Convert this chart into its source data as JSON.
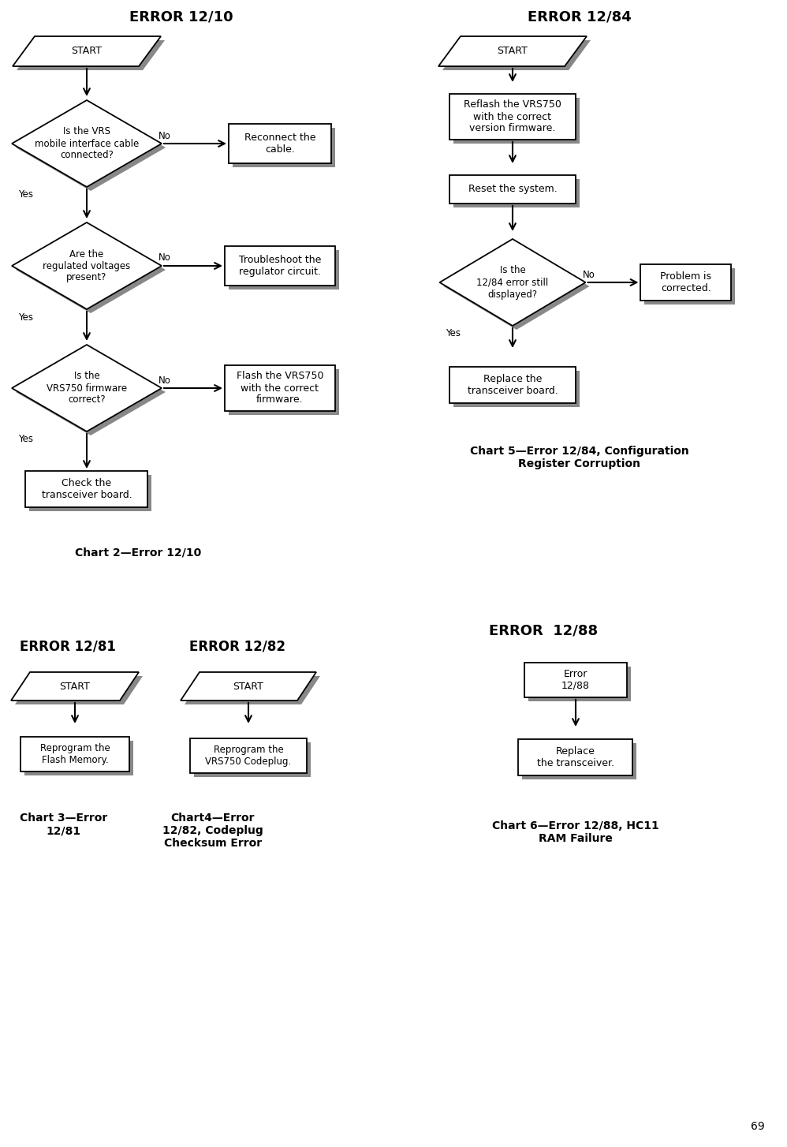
{
  "bg_color": "#ffffff",
  "text_color": "#000000",
  "box_color": "#ffffff",
  "box_edge": "#000000",
  "shadow_color": "#888888",
  "page_number": "69",
  "chart1_title": "ERROR 12/10",
  "chart1_caption": "Chart 2—Error 12/10",
  "chart2_title": "ERROR 12/84",
  "chart2_caption": "Chart 5—Error 12/84, Configuration\nRegister Corruption",
  "chart3_title": "ERROR 12/81",
  "chart3_caption": "Chart 3—Error\n12/81",
  "chart4_title": "ERROR 12/82",
  "chart4_caption": "Chart4—Error\n12/82, Codeplug\nChecksum Error",
  "chart5_title": "ERROR  12/88",
  "chart5_caption": "Chart 6—Error 12/88, HC11\nRAM Failure"
}
